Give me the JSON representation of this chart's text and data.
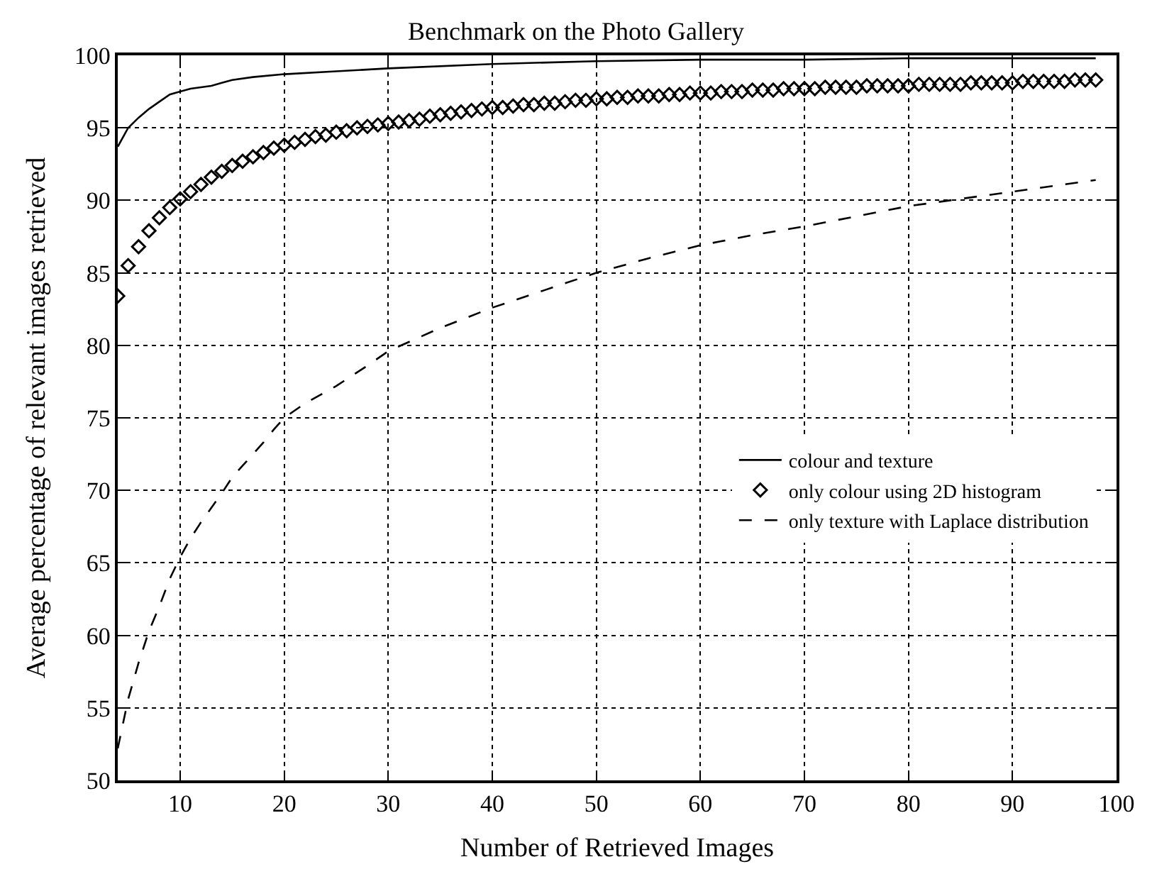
{
  "chart_data": {
    "type": "line",
    "title": "Benchmark on the Photo Gallery",
    "xlabel": "Number of Retrieved Images",
    "ylabel": "Average percentage of relevant images retrieved",
    "xlim": [
      4,
      100
    ],
    "xticks": [
      10,
      20,
      30,
      40,
      50,
      60,
      70,
      80,
      90,
      100
    ],
    "ylim": [
      50,
      100
    ],
    "yticks": [
      50,
      55,
      60,
      65,
      70,
      75,
      80,
      85,
      90,
      95,
      100
    ],
    "grid": true,
    "legend": "right",
    "series": [
      {
        "name": "colour and texture",
        "color": "#000000",
        "line_style": "solid",
        "marker": "none",
        "x": [
          4,
          5,
          6,
          7,
          8,
          9,
          10,
          11,
          12,
          13,
          14,
          15,
          17,
          20,
          25,
          30,
          40,
          50,
          60,
          70,
          80,
          90,
          98
        ],
        "values": [
          93.7,
          95.0,
          95.7,
          96.3,
          96.8,
          97.3,
          97.5,
          97.7,
          97.8,
          97.9,
          98.1,
          98.3,
          98.5,
          98.7,
          98.9,
          99.1,
          99.4,
          99.6,
          99.7,
          99.7,
          99.8,
          99.8,
          99.8
        ]
      },
      {
        "name": "only colour using 2D histogram",
        "color": "#000000",
        "type": "scatter",
        "marker": "diamond",
        "x": [
          4,
          5,
          6,
          7,
          8,
          9,
          10,
          11,
          12,
          13,
          14,
          15,
          16,
          17,
          18,
          19,
          20,
          21,
          22,
          23,
          24,
          25,
          26,
          27,
          28,
          29,
          30,
          31,
          32,
          33,
          34,
          35,
          36,
          37,
          38,
          39,
          40,
          41,
          42,
          43,
          44,
          45,
          46,
          47,
          48,
          49,
          50,
          51,
          52,
          53,
          54,
          55,
          56,
          57,
          58,
          59,
          60,
          61,
          62,
          63,
          64,
          65,
          66,
          67,
          68,
          69,
          70,
          71,
          72,
          73,
          74,
          75,
          76,
          77,
          78,
          79,
          80,
          81,
          82,
          83,
          84,
          85,
          86,
          87,
          88,
          89,
          90,
          91,
          92,
          93,
          94,
          95,
          96,
          97,
          98
        ],
        "values": [
          83.4,
          85.5,
          86.8,
          87.9,
          88.8,
          89.5,
          90.1,
          90.6,
          91.1,
          91.6,
          92.0,
          92.4,
          92.7,
          93.0,
          93.3,
          93.6,
          93.8,
          94.0,
          94.2,
          94.4,
          94.5,
          94.7,
          94.8,
          95.0,
          95.1,
          95.2,
          95.3,
          95.4,
          95.5,
          95.6,
          95.8,
          95.9,
          96.0,
          96.1,
          96.2,
          96.3,
          96.4,
          96.4,
          96.5,
          96.6,
          96.6,
          96.7,
          96.7,
          96.8,
          96.9,
          96.9,
          97.0,
          97.0,
          97.1,
          97.1,
          97.2,
          97.2,
          97.2,
          97.3,
          97.3,
          97.4,
          97.4,
          97.4,
          97.5,
          97.5,
          97.5,
          97.6,
          97.6,
          97.6,
          97.7,
          97.7,
          97.7,
          97.7,
          97.8,
          97.8,
          97.8,
          97.8,
          97.9,
          97.9,
          97.9,
          97.9,
          97.9,
          98.0,
          98.0,
          98.0,
          98.0,
          98.0,
          98.1,
          98.1,
          98.1,
          98.1,
          98.1,
          98.2,
          98.2,
          98.2,
          98.2,
          98.2,
          98.3,
          98.3,
          98.3
        ]
      },
      {
        "name": "only texture with Laplace distribution",
        "color": "#000000",
        "line_style": "dashed",
        "marker": "none",
        "x": [
          4,
          5,
          6,
          7,
          8,
          9,
          10,
          11,
          12,
          13,
          14,
          15,
          16,
          17,
          18,
          19,
          20,
          22,
          25,
          28,
          30,
          35,
          40,
          45,
          50,
          55,
          60,
          65,
          70,
          75,
          80,
          85,
          90,
          95,
          98
        ],
        "values": [
          52.2,
          55.6,
          58.1,
          60.3,
          62.0,
          63.9,
          65.4,
          66.7,
          67.8,
          68.8,
          69.8,
          70.9,
          71.7,
          72.5,
          73.3,
          74.2,
          75.0,
          76.0,
          77.2,
          78.6,
          79.6,
          81.2,
          82.6,
          83.8,
          85.0,
          86.0,
          86.9,
          87.6,
          88.2,
          88.9,
          89.6,
          90.1,
          90.6,
          91.1,
          91.4
        ]
      }
    ]
  }
}
